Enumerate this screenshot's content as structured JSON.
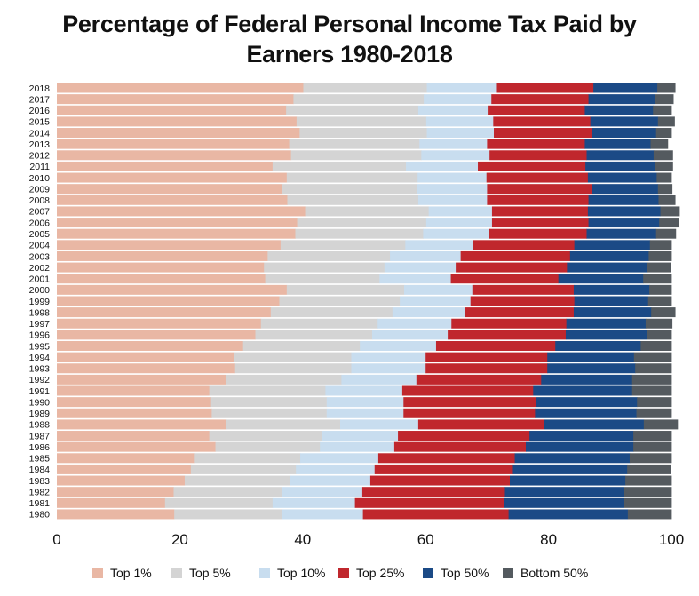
{
  "chart_data": {
    "type": "bar",
    "orientation": "horizontal",
    "stacked": true,
    "title_line1": "Percentage of Federal Personal Income Tax Paid by",
    "title_line2": "Earners 1980-2018",
    "xlim": [
      0,
      100
    ],
    "xticks": [
      0,
      20,
      40,
      60,
      80,
      100
    ],
    "categories": [
      "2018",
      "2017",
      "2016",
      "2015",
      "2014",
      "2013",
      "2012",
      "2011",
      "2010",
      "2009",
      "2008",
      "2007",
      "2006",
      "2005",
      "2004",
      "2003",
      "2002",
      "2001",
      "2000",
      "1999",
      "1998",
      "1997",
      "1996",
      "1995",
      "1994",
      "1993",
      "1992",
      "1991",
      "1990",
      "1989",
      "1988",
      "1987",
      "1986",
      "1985",
      "1984",
      "1983",
      "1982",
      "1981",
      "1980"
    ],
    "series": [
      {
        "name": "Top 1%",
        "color": "#e9b7a4",
        "values": [
          40.1,
          38.5,
          37.3,
          39.0,
          39.5,
          37.8,
          38.1,
          35.1,
          37.4,
          36.7,
          37.5,
          40.4,
          39.1,
          38.8,
          36.4,
          34.3,
          33.7,
          33.9,
          37.4,
          36.2,
          34.8,
          33.2,
          32.3,
          30.3,
          28.9,
          29.0,
          27.5,
          24.8,
          25.1,
          25.2,
          27.6,
          24.8,
          25.8,
          22.3,
          21.8,
          20.8,
          19.0,
          17.6,
          19.1
        ]
      },
      {
        "name": "Top 5%",
        "color": "#d4d4d4",
        "values": [
          20.1,
          21.2,
          21.5,
          21.1,
          20.7,
          21.2,
          21.2,
          21.7,
          21.3,
          21.9,
          21.3,
          20.1,
          21.0,
          20.8,
          20.3,
          19.9,
          19.6,
          18.6,
          19.1,
          19.6,
          19.8,
          19.0,
          19.0,
          19.0,
          19.0,
          18.9,
          18.8,
          18.9,
          18.8,
          18.7,
          18.5,
          18.3,
          17.0,
          17.3,
          17.1,
          17.2,
          17.6,
          17.5,
          17.6
        ]
      },
      {
        "name": "Top 10%",
        "color": "#c8ddef",
        "values": [
          11.4,
          11.0,
          11.3,
          10.9,
          10.9,
          11.0,
          11.1,
          11.7,
          11.2,
          11.4,
          11.2,
          10.3,
          10.7,
          10.7,
          11.0,
          11.5,
          11.6,
          11.6,
          11.1,
          11.5,
          11.8,
          12.0,
          12.3,
          12.4,
          12.1,
          12.1,
          12.2,
          12.5,
          12.5,
          12.5,
          12.7,
          12.4,
          12.1,
          12.7,
          12.8,
          13.0,
          13.1,
          13.4,
          13.1
        ]
      },
      {
        "name": "Top 25%",
        "color": "#c0272d",
        "values": [
          15.7,
          15.8,
          15.8,
          15.8,
          15.9,
          15.9,
          15.8,
          17.5,
          16.5,
          17.1,
          16.5,
          15.6,
          15.7,
          15.9,
          16.5,
          17.8,
          18.1,
          17.5,
          16.5,
          16.9,
          17.7,
          18.7,
          19.2,
          19.4,
          19.8,
          19.8,
          20.3,
          21.3,
          21.5,
          21.4,
          20.4,
          21.4,
          21.4,
          22.2,
          22.5,
          22.7,
          23.2,
          24.2,
          23.7
        ]
      },
      {
        "name": "Top 50%",
        "color": "#1b4a86",
        "values": [
          10.4,
          10.8,
          11.1,
          11.0,
          10.5,
          10.7,
          10.9,
          11.3,
          11.2,
          10.7,
          11.4,
          11.8,
          11.5,
          11.3,
          12.3,
          12.8,
          13.1,
          13.8,
          12.3,
          12.0,
          12.6,
          12.9,
          13.2,
          13.9,
          14.1,
          14.3,
          14.8,
          16.1,
          16.5,
          16.5,
          16.3,
          16.9,
          17.5,
          18.7,
          18.6,
          18.8,
          19.3,
          19.5,
          19.4
        ]
      },
      {
        "name": "Bottom 50%",
        "color": "#545a5f",
        "values": [
          2.9,
          3.0,
          3.0,
          2.7,
          2.5,
          2.8,
          3.1,
          2.9,
          2.4,
          2.3,
          2.7,
          3.1,
          3.1,
          3.2,
          3.5,
          3.7,
          3.8,
          4.6,
          3.6,
          3.8,
          3.9,
          4.3,
          4.0,
          5.0,
          6.1,
          5.9,
          6.4,
          6.4,
          5.6,
          5.7,
          5.5,
          6.2,
          6.2,
          6.8,
          7.1,
          7.5,
          7.8,
          7.8,
          7.1
        ]
      }
    ]
  }
}
